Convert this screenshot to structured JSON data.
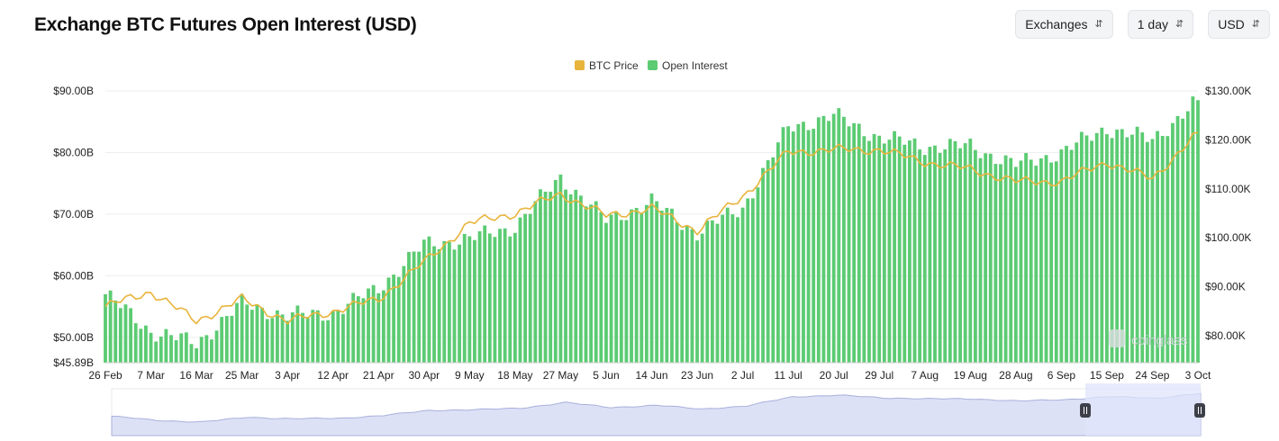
{
  "header": {
    "title": "Exchange BTC Futures Open Interest (USD)",
    "controls": [
      {
        "label": "Exchanges",
        "icon": "updown-chevron-icon"
      },
      {
        "label": "1 day",
        "icon": "updown-chevron-icon"
      },
      {
        "label": "USD",
        "icon": "updown-chevron-icon"
      }
    ]
  },
  "colors": {
    "open_interest": "#5ccb73",
    "btc_price": "#e8b43c",
    "grid": "#eeeeee",
    "navigator_fill": "#dde1f5",
    "navigator_line": "#a8b0dc",
    "navigator_window": "#dfe4fb",
    "handle": "#3d4048"
  },
  "chart_data": {
    "type": "bar",
    "series": [
      {
        "name": "Open Interest",
        "kind": "bar",
        "axis": "left",
        "anchors": [
          [
            "26 Feb",
            57
          ],
          [
            "7 Mar",
            51
          ],
          [
            "16 Mar",
            49
          ],
          [
            "25 Mar",
            55.5
          ],
          [
            "3 Apr",
            53.5
          ],
          [
            "12 Apr",
            54
          ],
          [
            "21 Apr",
            58
          ],
          [
            "30 Apr",
            65
          ],
          [
            "9 May",
            66
          ],
          [
            "18 May",
            68
          ],
          [
            "27 May",
            76
          ],
          [
            "5 Jun",
            69
          ],
          [
            "14 Jun",
            72
          ],
          [
            "23 Jun",
            67
          ],
          [
            "2 Jul",
            71
          ],
          [
            "11 Jul",
            84
          ],
          [
            "20 Jul",
            86
          ],
          [
            "29 Jul",
            82.5
          ],
          [
            "7 Aug",
            81
          ],
          [
            "19 Aug",
            81
          ],
          [
            "28 Aug",
            78
          ],
          [
            "6 Sep",
            80
          ],
          [
            "15 Sep",
            84
          ],
          [
            "24 Sep",
            82
          ],
          [
            "3 Oct",
            88.5
          ]
        ]
      },
      {
        "name": "BTC Price",
        "kind": "line",
        "axis": "right",
        "anchors": [
          [
            "26 Feb",
            86000
          ],
          [
            "7 Mar",
            89000
          ],
          [
            "16 Mar",
            83000
          ],
          [
            "25 Mar",
            87500
          ],
          [
            "3 Apr",
            83000
          ],
          [
            "12 Apr",
            85000
          ],
          [
            "21 Apr",
            87500
          ],
          [
            "30 Apr",
            95000
          ],
          [
            "9 May",
            103000
          ],
          [
            "18 May",
            105000
          ],
          [
            "27 May",
            109000
          ],
          [
            "5 Jun",
            104500
          ],
          [
            "14 Jun",
            106000
          ],
          [
            "23 Jun",
            101500
          ],
          [
            "2 Jul",
            108500
          ],
          [
            "11 Jul",
            117500
          ],
          [
            "20 Jul",
            118000
          ],
          [
            "29 Jul",
            118000
          ],
          [
            "7 Aug",
            115500
          ],
          [
            "19 Aug",
            114000
          ],
          [
            "28 Aug",
            111500
          ],
          [
            "6 Sep",
            111500
          ],
          [
            "15 Sep",
            115500
          ],
          [
            "24 Sep",
            112000
          ],
          [
            "3 Oct",
            121500
          ]
        ]
      }
    ],
    "x_ticks": [
      "26 Feb",
      "7 Mar",
      "16 Mar",
      "25 Mar",
      "3 Apr",
      "12 Apr",
      "21 Apr",
      "30 Apr",
      "9 May",
      "18 May",
      "27 May",
      "5 Jun",
      "14 Jun",
      "23 Jun",
      "2 Jul",
      "11 Jul",
      "20 Jul",
      "29 Jul",
      "7 Aug",
      "19 Aug",
      "28 Aug",
      "6 Sep",
      "15 Sep",
      "24 Sep",
      "3 Oct"
    ],
    "left_axis": {
      "ticks": [
        "$90.00B",
        "$80.00B",
        "$70.00B",
        "$60.00B",
        "$50.00B",
        "$45.89B"
      ],
      "tick_values": [
        90,
        80,
        70,
        60,
        50,
        45.89
      ],
      "range": [
        45.89,
        90
      ]
    },
    "right_axis": {
      "ticks": [
        "$130.00K",
        "$120.00K",
        "$110.00K",
        "$100.00K",
        "$90.00K",
        "$80.00K"
      ],
      "tick_values": [
        130000,
        120000,
        110000,
        100000,
        90000,
        80000
      ],
      "range": [
        74500,
        130000
      ]
    },
    "legend": {
      "placement": "top-center",
      "entries": [
        "BTC Price",
        "Open Interest"
      ]
    },
    "grid": true,
    "watermark": "coinglass"
  }
}
